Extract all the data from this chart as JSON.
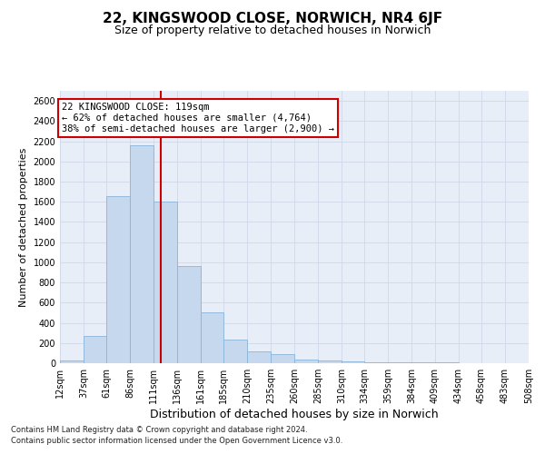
{
  "title": "22, KINGSWOOD CLOSE, NORWICH, NR4 6JF",
  "subtitle": "Size of property relative to detached houses in Norwich",
  "xlabel": "Distribution of detached houses by size in Norwich",
  "ylabel": "Number of detached properties",
  "footnote1": "Contains HM Land Registry data © Crown copyright and database right 2024.",
  "footnote2": "Contains public sector information licensed under the Open Government Licence v3.0.",
  "bar_color": "#c5d8ee",
  "bar_edgecolor": "#8ab4d8",
  "bins": [
    12,
    37,
    61,
    86,
    111,
    136,
    161,
    185,
    210,
    235,
    260,
    285,
    310,
    334,
    359,
    384,
    409,
    434,
    458,
    483,
    508
  ],
  "tick_labels": [
    "12sqm",
    "37sqm",
    "61sqm",
    "86sqm",
    "111sqm",
    "136sqm",
    "161sqm",
    "185sqm",
    "210sqm",
    "235sqm",
    "260sqm",
    "285sqm",
    "310sqm",
    "334sqm",
    "359sqm",
    "384sqm",
    "409sqm",
    "434sqm",
    "458sqm",
    "483sqm",
    "508sqm"
  ],
  "values": [
    30,
    270,
    1660,
    2160,
    1600,
    960,
    500,
    235,
    115,
    90,
    38,
    28,
    18,
    12,
    10,
    8,
    5,
    4,
    4,
    4
  ],
  "vline_x": 119,
  "vline_color": "#cc0000",
  "annotation_text": "22 KINGSWOOD CLOSE: 119sqm\n← 62% of detached houses are smaller (4,764)\n38% of semi-detached houses are larger (2,900) →",
  "annotation_box_color": "#ffffff",
  "annotation_box_edgecolor": "#cc0000",
  "ylim": [
    0,
    2700
  ],
  "yticks": [
    0,
    200,
    400,
    600,
    800,
    1000,
    1200,
    1400,
    1600,
    1800,
    2000,
    2200,
    2400,
    2600
  ],
  "grid_color": "#d0d8e8",
  "background_color": "#e8eef8",
  "title_fontsize": 11,
  "subtitle_fontsize": 9,
  "ylabel_fontsize": 8,
  "xlabel_fontsize": 9,
  "tick_fontsize": 7,
  "annotation_fontsize": 7.5,
  "footnote_fontsize": 6
}
